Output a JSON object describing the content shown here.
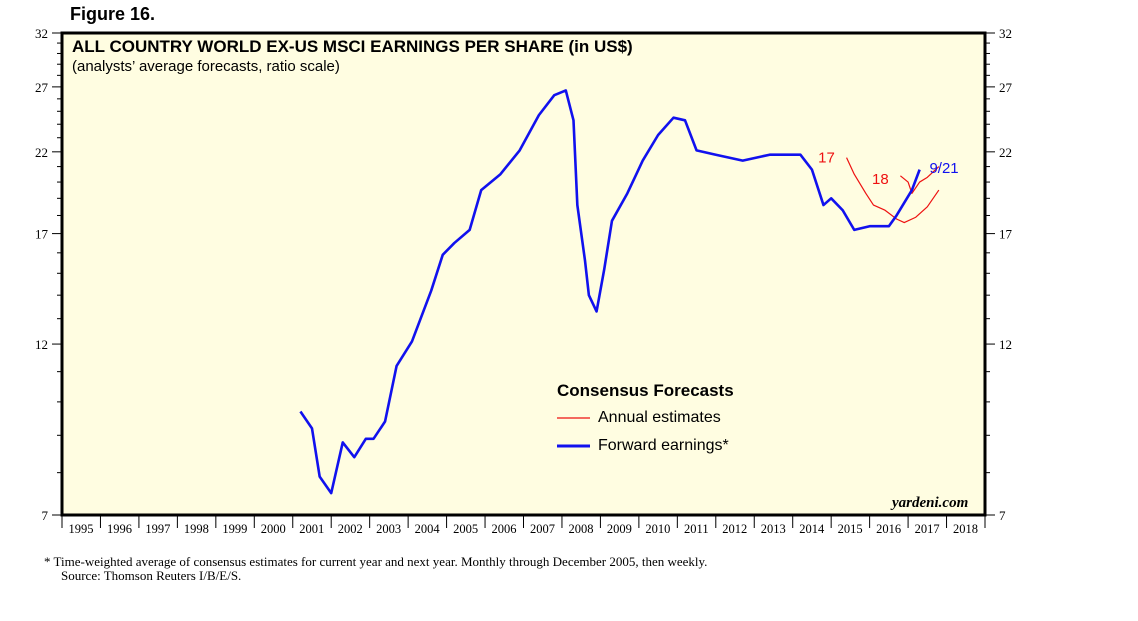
{
  "figure_label": "Figure 16.",
  "chart_data": {
    "type": "line",
    "title": "ALL COUNTRY WORLD EX-US MSCI EARNINGS PER SHARE (in US$)",
    "subtitle": "(analysts’ average forecasts, ratio scale)",
    "y_scale": "log",
    "ylim": [
      7,
      32
    ],
    "yticks": [
      7,
      12,
      17,
      22,
      27,
      32
    ],
    "xlim": [
      1995,
      2019
    ],
    "xticks": [
      "1995",
      "1996",
      "1997",
      "1998",
      "1999",
      "2000",
      "2001",
      "2002",
      "2003",
      "2004",
      "2005",
      "2006",
      "2007",
      "2008",
      "2009",
      "2010",
      "2011",
      "2012",
      "2013",
      "2014",
      "2015",
      "2016",
      "2017",
      "2018"
    ],
    "legend_title": "Consensus Forecasts",
    "series": [
      {
        "name": "Annual estimates",
        "color": "#ee1111",
        "label": "17",
        "points": [
          [
            2015.4,
            21.6
          ],
          [
            2015.6,
            20.5
          ],
          [
            2015.9,
            19.3
          ],
          [
            2016.1,
            18.6
          ],
          [
            2016.4,
            18.3
          ],
          [
            2016.7,
            17.8
          ],
          [
            2016.9,
            17.6
          ],
          [
            2017.2,
            17.9
          ],
          [
            2017.5,
            18.5
          ],
          [
            2017.8,
            19.5
          ]
        ]
      },
      {
        "name": "Annual estimates 2018",
        "color": "#ee1111",
        "label": "18",
        "points": [
          [
            2016.8,
            20.4
          ],
          [
            2017.0,
            20.0
          ],
          [
            2017.1,
            19.3
          ],
          [
            2017.3,
            20.0
          ],
          [
            2017.5,
            20.3
          ],
          [
            2017.8,
            21.0
          ]
        ]
      },
      {
        "name": "Forward earnings*",
        "color": "#1111ee",
        "label": "9/21",
        "points": [
          [
            2001.2,
            9.7
          ],
          [
            2001.5,
            9.2
          ],
          [
            2001.7,
            7.9
          ],
          [
            2002.0,
            7.5
          ],
          [
            2002.3,
            8.8
          ],
          [
            2002.6,
            8.4
          ],
          [
            2002.9,
            8.9
          ],
          [
            2003.1,
            8.9
          ],
          [
            2003.4,
            9.4
          ],
          [
            2003.7,
            11.2
          ],
          [
            2004.1,
            12.1
          ],
          [
            2004.6,
            14.2
          ],
          [
            2004.9,
            15.9
          ],
          [
            2005.2,
            16.5
          ],
          [
            2005.6,
            17.2
          ],
          [
            2005.9,
            19.5
          ],
          [
            2006.4,
            20.5
          ],
          [
            2006.9,
            22.1
          ],
          [
            2007.4,
            24.7
          ],
          [
            2007.8,
            26.3
          ],
          [
            2008.1,
            26.7
          ],
          [
            2008.3,
            24.3
          ],
          [
            2008.4,
            18.6
          ],
          [
            2008.6,
            15.6
          ],
          [
            2008.7,
            14.0
          ],
          [
            2008.9,
            13.3
          ],
          [
            2009.1,
            15.2
          ],
          [
            2009.3,
            17.7
          ],
          [
            2009.7,
            19.3
          ],
          [
            2010.1,
            21.4
          ],
          [
            2010.5,
            23.2
          ],
          [
            2010.9,
            24.5
          ],
          [
            2011.2,
            24.3
          ],
          [
            2011.5,
            22.1
          ],
          [
            2012.0,
            21.8
          ],
          [
            2012.7,
            21.4
          ],
          [
            2013.4,
            21.8
          ],
          [
            2014.2,
            21.8
          ],
          [
            2014.5,
            20.8
          ],
          [
            2014.8,
            18.6
          ],
          [
            2015.0,
            19.0
          ],
          [
            2015.3,
            18.3
          ],
          [
            2015.6,
            17.2
          ],
          [
            2016.0,
            17.4
          ],
          [
            2016.5,
            17.4
          ],
          [
            2016.7,
            18.0
          ],
          [
            2017.1,
            19.5
          ],
          [
            2017.3,
            20.8
          ]
        ]
      }
    ]
  },
  "footnote": "*  Time-weighted average of consensus estimates for current year and next year. Monthly through December 2005, then weekly.",
  "source": "Source: Thomson Reuters I/B/E/S.",
  "brand": "yardeni.com"
}
